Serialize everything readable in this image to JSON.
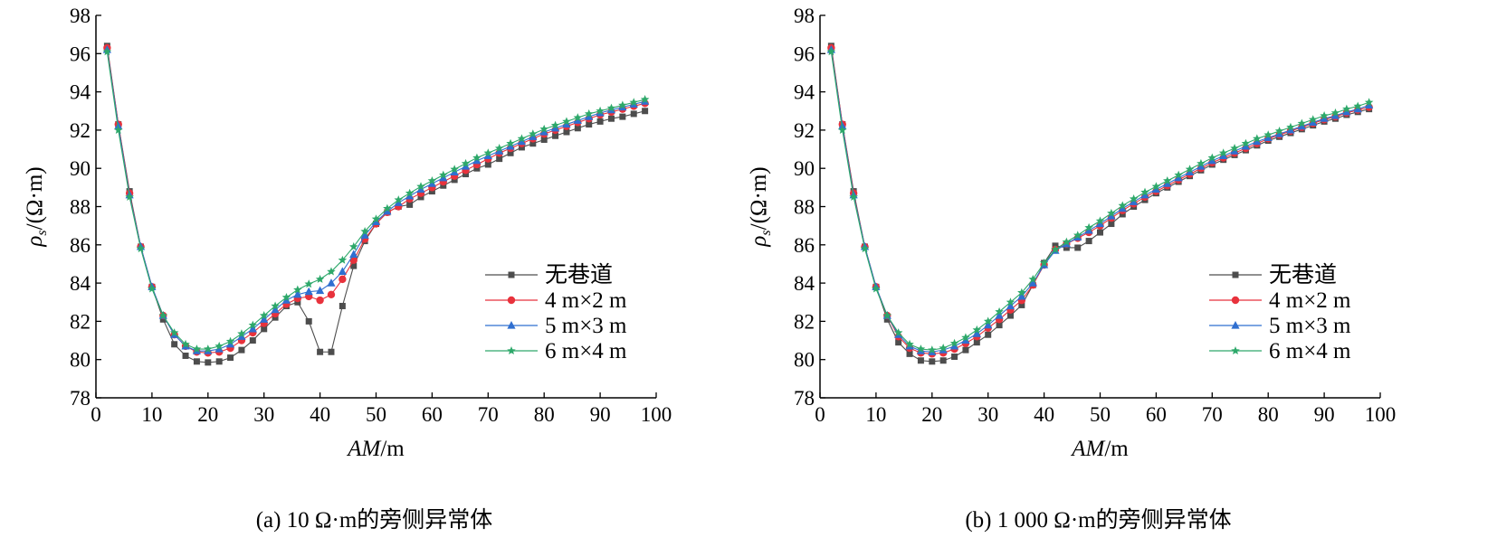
{
  "chart_data": [
    {
      "type": "line",
      "caption": "(a) 10 Ω·m的旁侧异常体",
      "xlabel_italic": "AM",
      "xlabel_unit": "/m",
      "ylabel_rho": "ρ",
      "ylabel_sub": "s",
      "ylabel_unit": "/(Ω·m)",
      "xlim": [
        0,
        100
      ],
      "ylim": [
        78,
        98
      ],
      "xticks": [
        "0",
        "10",
        "20",
        "30",
        "40",
        "50",
        "60",
        "70",
        "80",
        "90",
        "100"
      ],
      "yticks": [
        "78",
        "80",
        "82",
        "84",
        "86",
        "88",
        "90",
        "92",
        "94",
        "96",
        "98"
      ],
      "x": [
        2,
        4,
        6,
        8,
        10,
        12,
        14,
        16,
        18,
        20,
        22,
        24,
        26,
        28,
        30,
        32,
        34,
        36,
        38,
        40,
        42,
        44,
        46,
        48,
        50,
        52,
        54,
        56,
        58,
        60,
        62,
        64,
        66,
        68,
        70,
        72,
        74,
        76,
        78,
        80,
        82,
        84,
        86,
        88,
        90,
        92,
        94,
        96,
        98
      ],
      "series": [
        {
          "name": "无巷道",
          "color": "#4d4d4d",
          "marker": "square",
          "values": [
            96.4,
            92.3,
            88.8,
            85.9,
            83.8,
            82.1,
            80.8,
            80.2,
            79.9,
            79.85,
            79.9,
            80.1,
            80.5,
            81.0,
            81.6,
            82.2,
            82.8,
            83.0,
            82.0,
            80.4,
            80.4,
            82.8,
            84.9,
            86.2,
            87.1,
            87.7,
            88.0,
            88.1,
            88.5,
            88.8,
            89.1,
            89.4,
            89.7,
            90.0,
            90.2,
            90.5,
            90.8,
            91.1,
            91.3,
            91.5,
            91.7,
            91.9,
            92.1,
            92.3,
            92.45,
            92.6,
            92.7,
            92.85,
            93.0
          ]
        },
        {
          "name": "4 m×2 m",
          "color": "#e8323c",
          "marker": "circle",
          "values": [
            96.3,
            92.3,
            88.7,
            85.9,
            83.8,
            82.3,
            81.3,
            80.7,
            80.4,
            80.35,
            80.4,
            80.6,
            81.0,
            81.4,
            81.9,
            82.4,
            82.9,
            83.2,
            83.3,
            83.1,
            83.4,
            84.2,
            85.2,
            86.3,
            87.1,
            87.7,
            88.0,
            88.4,
            88.7,
            89.0,
            89.3,
            89.6,
            89.9,
            90.2,
            90.5,
            90.8,
            91.05,
            91.3,
            91.55,
            91.8,
            92.0,
            92.2,
            92.4,
            92.6,
            92.8,
            92.95,
            93.1,
            93.25,
            93.4
          ]
        },
        {
          "name": "5 m×3 m",
          "color": "#2f6fd0",
          "marker": "triangle",
          "values": [
            96.2,
            92.2,
            88.6,
            85.9,
            83.8,
            82.3,
            81.3,
            80.7,
            80.45,
            80.45,
            80.55,
            80.8,
            81.2,
            81.6,
            82.1,
            82.6,
            83.1,
            83.4,
            83.55,
            83.6,
            84.0,
            84.6,
            85.5,
            86.5,
            87.2,
            87.75,
            88.2,
            88.55,
            88.9,
            89.2,
            89.5,
            89.8,
            90.1,
            90.4,
            90.65,
            90.9,
            91.15,
            91.4,
            91.65,
            91.9,
            92.1,
            92.3,
            92.5,
            92.7,
            92.9,
            93.05,
            93.2,
            93.35,
            93.5
          ]
        },
        {
          "name": "6 m×4 m",
          "color": "#2da86a",
          "marker": "star",
          "values": [
            96.1,
            92.0,
            88.5,
            85.8,
            83.7,
            82.3,
            81.4,
            80.8,
            80.55,
            80.55,
            80.7,
            80.95,
            81.35,
            81.8,
            82.3,
            82.8,
            83.25,
            83.65,
            83.95,
            84.2,
            84.6,
            85.2,
            85.9,
            86.7,
            87.35,
            87.9,
            88.35,
            88.7,
            89.05,
            89.35,
            89.65,
            89.95,
            90.25,
            90.55,
            90.8,
            91.05,
            91.3,
            91.55,
            91.8,
            92.05,
            92.25,
            92.45,
            92.65,
            92.85,
            93.0,
            93.15,
            93.3,
            93.45,
            93.6
          ]
        }
      ]
    },
    {
      "type": "line",
      "caption": "(b) 1 000 Ω·m的旁侧异常体",
      "xlabel_italic": "AM",
      "xlabel_unit": "/m",
      "ylabel_rho": "ρ",
      "ylabel_sub": "s",
      "ylabel_unit": "/(Ω·m)",
      "xlim": [
        0,
        100
      ],
      "ylim": [
        78,
        98
      ],
      "xticks": [
        "0",
        "10",
        "20",
        "30",
        "40",
        "50",
        "60",
        "70",
        "80",
        "90",
        "100"
      ],
      "yticks": [
        "78",
        "80",
        "82",
        "84",
        "86",
        "88",
        "90",
        "92",
        "94",
        "96",
        "98"
      ],
      "x": [
        2,
        4,
        6,
        8,
        10,
        12,
        14,
        16,
        18,
        20,
        22,
        24,
        26,
        28,
        30,
        32,
        34,
        36,
        38,
        40,
        42,
        44,
        46,
        48,
        50,
        52,
        54,
        56,
        58,
        60,
        62,
        64,
        66,
        68,
        70,
        72,
        74,
        76,
        78,
        80,
        82,
        84,
        86,
        88,
        90,
        92,
        94,
        96,
        98
      ],
      "series": [
        {
          "name": "无巷道",
          "color": "#4d4d4d",
          "marker": "square",
          "values": [
            96.4,
            92.3,
            88.8,
            85.9,
            83.8,
            82.1,
            80.9,
            80.3,
            79.95,
            79.9,
            79.95,
            80.15,
            80.5,
            80.9,
            81.3,
            81.8,
            82.3,
            82.85,
            83.9,
            85.05,
            85.95,
            85.85,
            85.85,
            86.2,
            86.65,
            87.1,
            87.6,
            88.0,
            88.35,
            88.7,
            89.0,
            89.3,
            89.6,
            89.9,
            90.2,
            90.45,
            90.7,
            90.95,
            91.2,
            91.45,
            91.65,
            91.85,
            92.05,
            92.25,
            92.45,
            92.6,
            92.8,
            92.95,
            93.1
          ]
        },
        {
          "name": "4 m×2 m",
          "color": "#e8323c",
          "marker": "circle",
          "values": [
            96.3,
            92.3,
            88.7,
            85.9,
            83.8,
            82.3,
            81.2,
            80.6,
            80.35,
            80.3,
            80.35,
            80.55,
            80.85,
            81.2,
            81.65,
            82.1,
            82.6,
            83.1,
            83.9,
            84.95,
            85.75,
            86.05,
            86.35,
            86.65,
            87.0,
            87.4,
            87.8,
            88.15,
            88.5,
            88.8,
            89.1,
            89.4,
            89.7,
            90.0,
            90.3,
            90.55,
            90.8,
            91.05,
            91.3,
            91.55,
            91.75,
            91.95,
            92.15,
            92.35,
            92.55,
            92.7,
            92.9,
            93.05,
            93.2
          ]
        },
        {
          "name": "5 m×3 m",
          "color": "#2f6fd0",
          "marker": "triangle",
          "values": [
            96.2,
            92.2,
            88.6,
            85.9,
            83.8,
            82.3,
            81.3,
            80.7,
            80.45,
            80.4,
            80.5,
            80.7,
            81.0,
            81.35,
            81.8,
            82.3,
            82.8,
            83.3,
            84.0,
            84.95,
            85.7,
            86.05,
            86.4,
            86.75,
            87.1,
            87.5,
            87.9,
            88.25,
            88.6,
            88.9,
            89.2,
            89.5,
            89.8,
            90.1,
            90.4,
            90.65,
            90.9,
            91.15,
            91.4,
            91.6,
            91.8,
            92.0,
            92.2,
            92.4,
            92.6,
            92.75,
            92.95,
            93.1,
            93.3
          ]
        },
        {
          "name": "6 m×4 m",
          "color": "#2da86a",
          "marker": "star",
          "values": [
            96.1,
            92.0,
            88.5,
            85.8,
            83.7,
            82.3,
            81.4,
            80.8,
            80.55,
            80.5,
            80.6,
            80.85,
            81.15,
            81.55,
            82.0,
            82.5,
            83.0,
            83.5,
            84.2,
            85.05,
            85.75,
            86.15,
            86.5,
            86.9,
            87.25,
            87.65,
            88.05,
            88.4,
            88.75,
            89.05,
            89.35,
            89.65,
            89.95,
            90.25,
            90.55,
            90.8,
            91.05,
            91.3,
            91.55,
            91.75,
            91.95,
            92.15,
            92.35,
            92.55,
            92.75,
            92.9,
            93.1,
            93.25,
            93.45
          ]
        }
      ]
    }
  ]
}
